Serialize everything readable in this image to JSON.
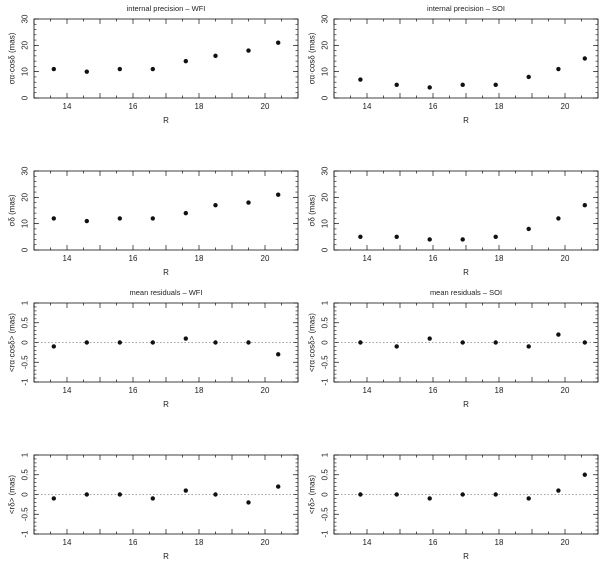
{
  "colors": {
    "ink": "#111111",
    "zero_line": "#888888",
    "background": "#ffffff"
  },
  "chart_data": [
    {
      "type": "scatter",
      "title": "internal precision – WFI",
      "xlabel": "R",
      "ylabel": "σα·cosδ (mas)",
      "xlim": [
        13,
        21
      ],
      "ylim": [
        0,
        30
      ],
      "xticks": [
        14,
        16,
        18,
        20
      ],
      "yticks": [
        0,
        10,
        20,
        30
      ],
      "zero_line": false,
      "series": [
        {
          "x": [
            13.6,
            14.6,
            15.6,
            16.6,
            17.6,
            18.5,
            19.5,
            20.4
          ],
          "y": [
            11,
            10,
            11,
            11,
            14,
            16,
            18,
            21
          ]
        }
      ]
    },
    {
      "type": "scatter",
      "title": "internal precision – SOI",
      "xlabel": "R",
      "ylabel": "σα·cosδ (mas)",
      "xlim": [
        13,
        21
      ],
      "ylim": [
        0,
        30
      ],
      "xticks": [
        14,
        16,
        18,
        20
      ],
      "yticks": [
        0,
        10,
        20,
        30
      ],
      "zero_line": false,
      "series": [
        {
          "x": [
            13.8,
            14.9,
            15.9,
            16.9,
            17.9,
            18.9,
            19.8,
            20.6
          ],
          "y": [
            7,
            5,
            4,
            5,
            5,
            8,
            11,
            15
          ]
        }
      ]
    },
    {
      "type": "scatter",
      "title": "",
      "xlabel": "R",
      "ylabel": "σδ (mas)",
      "xlim": [
        13,
        21
      ],
      "ylim": [
        0,
        30
      ],
      "xticks": [
        14,
        16,
        18,
        20
      ],
      "yticks": [
        0,
        10,
        20,
        30
      ],
      "zero_line": false,
      "series": [
        {
          "x": [
            13.6,
            14.6,
            15.6,
            16.6,
            17.6,
            18.5,
            19.5,
            20.4
          ],
          "y": [
            12,
            11,
            12,
            12,
            14,
            17,
            18,
            21
          ]
        }
      ]
    },
    {
      "type": "scatter",
      "title": "",
      "xlabel": "R",
      "ylabel": "σδ (mas)",
      "xlim": [
        13,
        21
      ],
      "ylim": [
        0,
        30
      ],
      "xticks": [
        14,
        16,
        18,
        20
      ],
      "yticks": [
        0,
        10,
        20,
        30
      ],
      "zero_line": false,
      "series": [
        {
          "x": [
            13.8,
            14.9,
            15.9,
            16.9,
            17.9,
            18.9,
            19.8,
            20.6
          ],
          "y": [
            5,
            5,
            4,
            4,
            5,
            8,
            12,
            17
          ]
        }
      ]
    },
    {
      "type": "scatter",
      "title": "mean residuals – WFI",
      "xlabel": "R",
      "ylabel": "<rα·cosδ> (mas)",
      "xlim": [
        13,
        21
      ],
      "ylim": [
        -1,
        1
      ],
      "xticks": [
        14,
        16,
        18,
        20
      ],
      "yticks": [
        -1,
        -0.5,
        0,
        0.5,
        1
      ],
      "zero_line": true,
      "series": [
        {
          "x": [
            13.6,
            14.6,
            15.6,
            16.6,
            17.6,
            18.5,
            19.5,
            20.4
          ],
          "y": [
            -0.1,
            0.0,
            0.0,
            0.0,
            0.1,
            0.0,
            0.0,
            -0.3
          ]
        }
      ]
    },
    {
      "type": "scatter",
      "title": "mean residuals – SOI",
      "xlabel": "R",
      "ylabel": "<rα·cosδ> (mas)",
      "xlim": [
        13,
        21
      ],
      "ylim": [
        -1,
        1
      ],
      "xticks": [
        14,
        16,
        18,
        20
      ],
      "yticks": [
        -1,
        -0.5,
        0,
        0.5,
        1
      ],
      "zero_line": true,
      "series": [
        {
          "x": [
            13.8,
            14.9,
            15.9,
            16.9,
            17.9,
            18.9,
            19.8,
            20.6
          ],
          "y": [
            0.0,
            -0.1,
            0.1,
            0.0,
            0.0,
            -0.1,
            0.2,
            0.0
          ]
        }
      ]
    },
    {
      "type": "scatter",
      "title": "",
      "xlabel": "R",
      "ylabel": "<rδ> (mas)",
      "xlim": [
        13,
        21
      ],
      "ylim": [
        -1,
        1
      ],
      "xticks": [
        14,
        16,
        18,
        20
      ],
      "yticks": [
        -1,
        -0.5,
        0,
        0.5,
        1
      ],
      "zero_line": true,
      "series": [
        {
          "x": [
            13.6,
            14.6,
            15.6,
            16.6,
            17.6,
            18.5,
            19.5,
            20.4
          ],
          "y": [
            -0.1,
            0.0,
            0.0,
            -0.1,
            0.1,
            0.0,
            -0.2,
            0.2
          ]
        }
      ]
    },
    {
      "type": "scatter",
      "title": "",
      "xlabel": "R",
      "ylabel": "<rδ> (mas)",
      "xlim": [
        13,
        21
      ],
      "ylim": [
        -1,
        1
      ],
      "xticks": [
        14,
        16,
        18,
        20
      ],
      "yticks": [
        -1,
        -0.5,
        0,
        0.5,
        1
      ],
      "zero_line": true,
      "series": [
        {
          "x": [
            13.8,
            14.9,
            15.9,
            16.9,
            17.9,
            18.9,
            19.8,
            20.6
          ],
          "y": [
            0.0,
            0.0,
            -0.1,
            0.0,
            0.0,
            -0.1,
            0.1,
            0.5
          ]
        }
      ]
    }
  ]
}
